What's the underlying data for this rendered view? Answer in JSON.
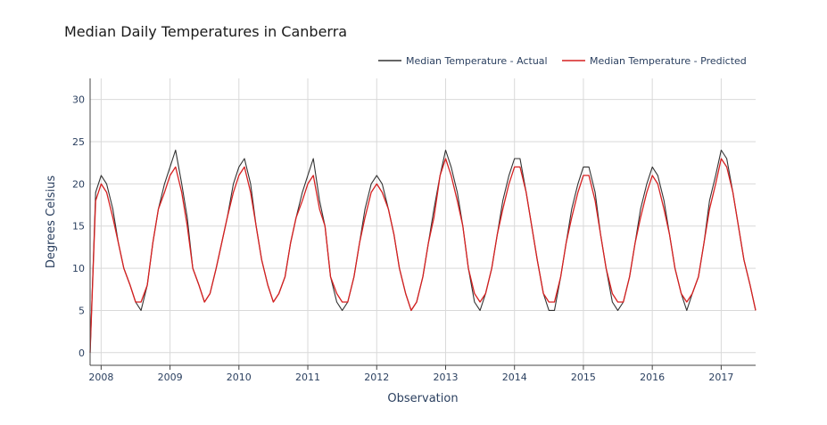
{
  "chart_data": {
    "type": "line",
    "title": "Median Daily Temperatures in Canberra",
    "xlabel": "Observation",
    "ylabel": "Degrees Celsius",
    "xlim": [
      2007.84,
      2017.5
    ],
    "ylim": [
      -1.5,
      32.5
    ],
    "x_ticks": [
      2008,
      2009,
      2010,
      2011,
      2012,
      2013,
      2014,
      2015,
      2016,
      2017
    ],
    "x_tick_labels": [
      "2008",
      "2009",
      "2010",
      "2011",
      "2012",
      "2013",
      "2014",
      "2015",
      "2016",
      "2017"
    ],
    "y_ticks": [
      0,
      5,
      10,
      15,
      20,
      25,
      30
    ],
    "y_tick_labels": [
      "0",
      "5",
      "10",
      "15",
      "20",
      "25",
      "30"
    ],
    "grid": true,
    "legend_position": "top-right",
    "series": [
      {
        "name": "Median Temperature - Actual",
        "color": "#333333",
        "x": [
          2007.84,
          2007.92,
          2008.0,
          2008.08,
          2008.17,
          2008.25,
          2008.33,
          2008.42,
          2008.5,
          2008.58,
          2008.67,
          2008.75,
          2008.83,
          2008.92,
          2009.0,
          2009.08,
          2009.17,
          2009.25,
          2009.33,
          2009.42,
          2009.5,
          2009.58,
          2009.67,
          2009.75,
          2009.83,
          2009.92,
          2010.0,
          2010.08,
          2010.17,
          2010.25,
          2010.33,
          2010.42,
          2010.5,
          2010.58,
          2010.67,
          2010.75,
          2010.83,
          2010.92,
          2011.0,
          2011.08,
          2011.17,
          2011.25,
          2011.33,
          2011.42,
          2011.5,
          2011.58,
          2011.67,
          2011.75,
          2011.83,
          2011.92,
          2012.0,
          2012.08,
          2012.17,
          2012.25,
          2012.33,
          2012.42,
          2012.5,
          2012.58,
          2012.67,
          2012.75,
          2012.83,
          2012.92,
          2013.0,
          2013.08,
          2013.17,
          2013.25,
          2013.33,
          2013.42,
          2013.5,
          2013.58,
          2013.67,
          2013.75,
          2013.83,
          2013.92,
          2014.0,
          2014.08,
          2014.17,
          2014.25,
          2014.33,
          2014.42,
          2014.5,
          2014.58,
          2014.67,
          2014.75,
          2014.83,
          2014.92,
          2015.0,
          2015.08,
          2015.17,
          2015.25,
          2015.33,
          2015.42,
          2015.5,
          2015.58,
          2015.67,
          2015.75,
          2015.83,
          2015.92,
          2016.0,
          2016.08,
          2016.17,
          2016.25,
          2016.33,
          2016.42,
          2016.5,
          2016.58,
          2016.67,
          2016.75,
          2016.83,
          2016.92,
          2017.0,
          2017.08,
          2017.17,
          2017.25,
          2017.33,
          2017.42,
          2017.5
        ],
        "values": [
          0,
          19,
          21,
          20,
          17,
          13,
          10,
          8,
          6,
          5,
          8,
          13,
          17,
          20,
          22,
          24,
          20,
          16,
          10,
          8,
          6,
          7,
          10,
          13,
          16,
          20,
          22,
          23,
          20,
          15,
          11,
          8,
          6,
          7,
          9,
          13,
          16,
          19,
          21,
          23,
          18,
          15,
          9,
          6,
          5,
          6,
          9,
          13,
          17,
          20,
          21,
          20,
          17,
          14,
          10,
          7,
          5,
          6,
          9,
          13,
          17,
          21,
          24,
          22,
          19,
          15,
          10,
          6,
          5,
          7,
          10,
          14,
          18,
          21,
          23,
          23,
          19,
          15,
          11,
          7,
          5,
          5,
          9,
          13,
          17,
          20,
          22,
          22,
          19,
          14,
          10,
          6,
          5,
          6,
          9,
          13,
          17,
          20,
          22,
          21,
          18,
          14,
          10,
          7,
          5,
          7,
          9,
          13,
          18,
          21,
          24,
          23,
          19,
          15,
          11,
          8,
          5
        ]
      },
      {
        "name": "Median Temperature - Predicted",
        "color": "#d62020",
        "x": [
          2007.84,
          2007.92,
          2008.0,
          2008.08,
          2008.17,
          2008.25,
          2008.33,
          2008.42,
          2008.5,
          2008.58,
          2008.67,
          2008.75,
          2008.83,
          2008.92,
          2009.0,
          2009.08,
          2009.17,
          2009.25,
          2009.33,
          2009.42,
          2009.5,
          2009.58,
          2009.67,
          2009.75,
          2009.83,
          2009.92,
          2010.0,
          2010.08,
          2010.17,
          2010.25,
          2010.33,
          2010.42,
          2010.5,
          2010.58,
          2010.67,
          2010.75,
          2010.83,
          2010.92,
          2011.0,
          2011.08,
          2011.17,
          2011.25,
          2011.33,
          2011.42,
          2011.5,
          2011.58,
          2011.67,
          2011.75,
          2011.83,
          2011.92,
          2012.0,
          2012.08,
          2012.17,
          2012.25,
          2012.33,
          2012.42,
          2012.5,
          2012.58,
          2012.67,
          2012.75,
          2012.83,
          2012.92,
          2013.0,
          2013.08,
          2013.17,
          2013.25,
          2013.33,
          2013.42,
          2013.5,
          2013.58,
          2013.67,
          2013.75,
          2013.83,
          2013.92,
          2014.0,
          2014.08,
          2014.17,
          2014.25,
          2014.33,
          2014.42,
          2014.5,
          2014.58,
          2014.67,
          2014.75,
          2014.83,
          2014.92,
          2015.0,
          2015.08,
          2015.17,
          2015.25,
          2015.33,
          2015.42,
          2015.5,
          2015.58,
          2015.67,
          2015.75,
          2015.83,
          2015.92,
          2016.0,
          2016.08,
          2016.17,
          2016.25,
          2016.33,
          2016.42,
          2016.5,
          2016.58,
          2016.67,
          2016.75,
          2016.83,
          2016.92,
          2017.0,
          2017.08,
          2017.17,
          2017.25,
          2017.33,
          2017.42,
          2017.5
        ],
        "values": [
          0,
          18,
          20,
          19,
          16,
          13,
          10,
          8,
          6,
          6,
          8,
          13,
          17,
          19,
          21,
          22,
          19,
          15,
          10,
          8,
          6,
          7,
          10,
          13,
          16,
          19,
          21,
          22,
          19,
          15,
          11,
          8,
          6,
          7,
          9,
          13,
          16,
          18,
          20,
          21,
          17,
          15,
          9,
          7,
          6,
          6,
          9,
          13,
          16,
          19,
          20,
          19,
          17,
          14,
          10,
          7,
          5,
          6,
          9,
          13,
          16,
          21,
          23,
          21,
          18,
          15,
          10,
          7,
          6,
          7,
          10,
          14,
          17,
          20,
          22,
          22,
          19,
          15,
          11,
          7,
          6,
          6,
          9,
          13,
          16,
          19,
          21,
          21,
          18,
          14,
          10,
          7,
          6,
          6,
          9,
          13,
          16,
          19,
          21,
          20,
          17,
          14,
          10,
          7,
          6,
          7,
          9,
          13,
          17,
          20,
          23,
          22,
          19,
          15,
          11,
          8,
          5
        ]
      }
    ]
  }
}
